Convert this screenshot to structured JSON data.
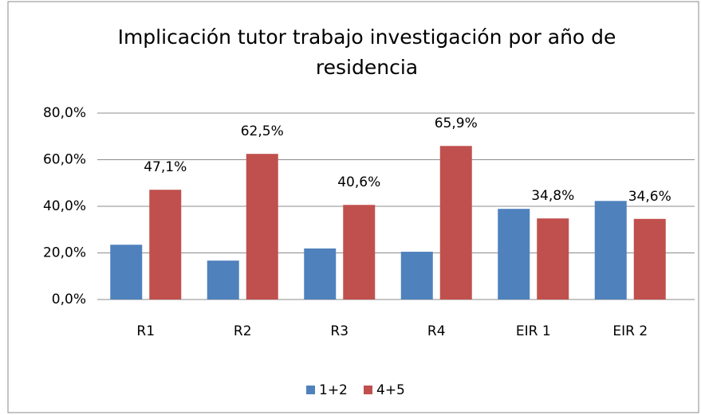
{
  "chart_data": {
    "type": "bar",
    "title": "Implicación tutor trabajo investigación por año de residencia",
    "categories": [
      "R1",
      "R2",
      "R3",
      "R4",
      "EIR 1",
      "EIR 2"
    ],
    "series": [
      {
        "name": "1+2",
        "color": "#4f81bd",
        "values": [
          23.5,
          16.7,
          21.9,
          20.5,
          38.9,
          42.3
        ]
      },
      {
        "name": "4+5",
        "color": "#c0504d",
        "values": [
          47.1,
          62.5,
          40.6,
          65.9,
          34.8,
          34.6
        ],
        "value_labels": [
          "47,1%",
          "62,5%",
          "40,6%",
          "65,9%",
          "34,8%",
          "34,6%"
        ]
      }
    ],
    "ylim": [
      0,
      80
    ],
    "yticks": [
      {
        "value": 0,
        "label": "0,0%"
      },
      {
        "value": 20,
        "label": "20,0%"
      },
      {
        "value": 40,
        "label": "40,0%"
      },
      {
        "value": 60,
        "label": "60,0%"
      },
      {
        "value": 80,
        "label": "80,0%"
      }
    ],
    "grid": true,
    "legend": "bottom"
  }
}
